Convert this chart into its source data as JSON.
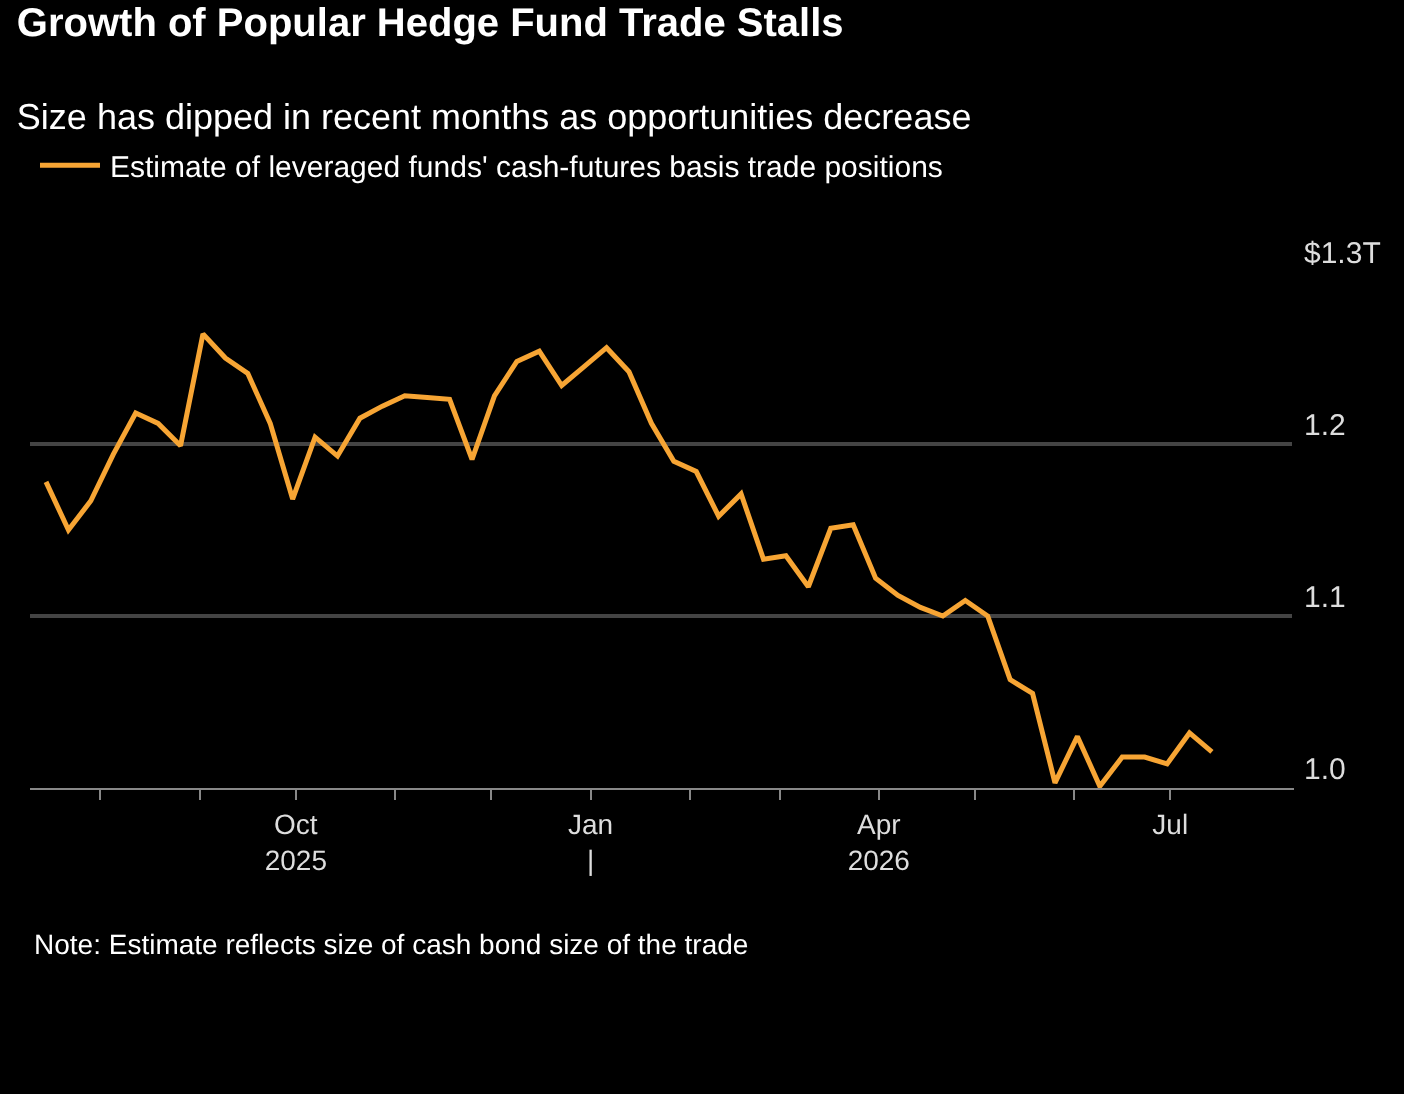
{
  "chart_data": {
    "type": "line",
    "title": "Growth of Popular Hedge Fund Trade Stalls",
    "subtitle": "Size has dipped in recent months as opportunities decrease",
    "x": [
      "2025-07-15",
      "2025-07-22",
      "2025-07-29",
      "2025-08-05",
      "2025-08-12",
      "2025-08-19",
      "2025-08-26",
      "2025-09-02",
      "2025-09-09",
      "2025-09-16",
      "2025-09-23",
      "2025-09-30",
      "2025-10-07",
      "2025-10-14",
      "2025-10-21",
      "2025-10-28",
      "2025-11-04",
      "2025-11-11",
      "2025-11-18",
      "2025-11-25",
      "2025-12-02",
      "2025-12-09",
      "2025-12-16",
      "2025-12-23",
      "2025-12-30",
      "2026-01-06",
      "2026-01-13",
      "2026-01-20",
      "2026-01-27",
      "2026-02-03",
      "2026-02-10",
      "2026-02-17",
      "2026-02-24",
      "2026-03-03",
      "2026-03-10",
      "2026-03-17",
      "2026-03-24",
      "2026-03-31",
      "2026-04-07",
      "2026-04-14",
      "2026-04-21",
      "2026-04-28",
      "2026-05-05",
      "2026-05-12",
      "2026-05-19",
      "2026-05-26",
      "2026-06-02",
      "2026-06-09",
      "2026-06-16",
      "2026-06-23",
      "2026-06-30",
      "2026-07-07",
      "2026-07-14"
    ],
    "series": [
      {
        "name": "Estimate of leveraged funds' cash-futures basis trade positions",
        "color": "#f7a534",
        "values": [
          1.178,
          1.15,
          1.167,
          1.194,
          1.218,
          1.212,
          1.199,
          1.264,
          1.25,
          1.241,
          1.212,
          1.168,
          1.204,
          1.193,
          1.215,
          1.222,
          1.228,
          1.227,
          1.226,
          1.191,
          1.228,
          1.248,
          1.254,
          1.234,
          1.245,
          1.256,
          1.242,
          1.212,
          1.19,
          1.184,
          1.158,
          1.171,
          1.133,
          1.135,
          1.117,
          1.151,
          1.153,
          1.122,
          1.112,
          1.105,
          1.1,
          1.109,
          1.1,
          1.063,
          1.055,
          1.003,
          1.03,
          1.001,
          1.018,
          1.018,
          1.014,
          1.032,
          1.021
        ]
      }
    ],
    "xlim": [
      "2025-07-10",
      "2026-08-08"
    ],
    "xticks": [
      {
        "value": "2025-08-01",
        "label": null
      },
      {
        "value": "2025-09-01",
        "label": null
      },
      {
        "value": "2025-10-01",
        "label": "Oct\n2025"
      },
      {
        "value": "2025-11-01",
        "label": null
      },
      {
        "value": "2025-12-01",
        "label": null
      },
      {
        "value": "2026-01-01",
        "label": "Jan\n|"
      },
      {
        "value": "2026-02-01",
        "label": null
      },
      {
        "value": "2026-03-01",
        "label": null
      },
      {
        "value": "2026-04-01",
        "label": "Apr\n2026"
      },
      {
        "value": "2026-05-01",
        "label": null
      },
      {
        "value": "2026-06-01",
        "label": null
      },
      {
        "value": "2026-07-01",
        "label": "Jul"
      }
    ],
    "ylim": [
      1.0,
      1.3
    ],
    "yticks": [
      {
        "value": 1.0,
        "label": "1.0"
      },
      {
        "value": 1.1,
        "label": "1.1"
      },
      {
        "value": 1.2,
        "label": "1.2"
      },
      {
        "value": 1.3,
        "label": "$1.3T"
      }
    ],
    "grid": "y",
    "legend": "top left",
    "marker": "none",
    "line_style": "solid",
    "annotations": [
      "Note: Estimate reflects size of cash bond size of the trade"
    ]
  }
}
